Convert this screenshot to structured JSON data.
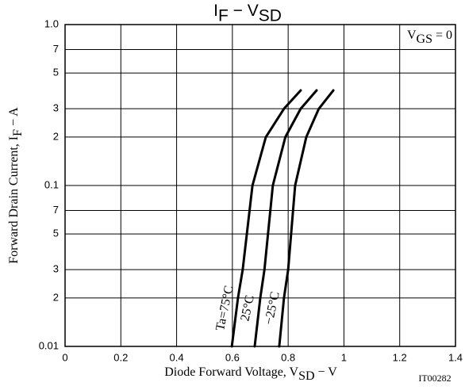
{
  "chart_data": {
    "type": "line",
    "title": [
      {
        "text": "I"
      },
      {
        "text": "F",
        "sub": true
      },
      {
        "text": " − V"
      },
      {
        "text": "SD",
        "sub": true
      }
    ],
    "x_label": [
      {
        "text": "Diode Forward Voltage, V"
      },
      {
        "text": "SD",
        "sub": true
      },
      {
        "text": " − V"
      }
    ],
    "y_label": [
      {
        "text": "Forward Drain Current, I"
      },
      {
        "text": "F",
        "sub": true
      },
      {
        "text": " − A"
      }
    ],
    "annotation": [
      {
        "text": "V"
      },
      {
        "text": "GS",
        "sub": true
      },
      {
        "text": " = 0"
      }
    ],
    "code": "IT00282",
    "xlim": [
      0,
      1.4
    ],
    "xticks": [
      0,
      0.2,
      0.4,
      0.6,
      0.8,
      1.0,
      1.2,
      1.4
    ],
    "ylim": [
      0.01,
      1.0
    ],
    "log_y": true,
    "yticks": [
      0.01,
      {
        "value": 0.02,
        "label": "2"
      },
      {
        "value": 0.03,
        "label": "3"
      },
      {
        "value": 0.05,
        "label": "5"
      },
      {
        "value": 0.07,
        "label": "7"
      },
      0.1,
      {
        "value": 0.2,
        "label": "2"
      },
      {
        "value": 0.3,
        "label": "3"
      },
      {
        "value": 0.5,
        "label": "5"
      },
      {
        "value": 0.7,
        "label": "7"
      },
      {
        "value": 1.0,
        "label": "1.0"
      }
    ],
    "grid": true,
    "color": "#000000",
    "series": [
      {
        "name": "Ta=75°C",
        "x": [
          0.598,
          0.62,
          0.637,
          0.672,
          0.72,
          0.785,
          0.845
        ],
        "values": [
          0.01,
          0.02,
          0.03,
          0.1,
          0.2,
          0.3,
          0.39
        ]
      },
      {
        "name": "25°C",
        "x": [
          0.68,
          0.7,
          0.715,
          0.745,
          0.79,
          0.845,
          0.902
        ],
        "values": [
          0.01,
          0.02,
          0.03,
          0.1,
          0.2,
          0.3,
          0.39
        ]
      },
      {
        "name": "−25°C",
        "x": [
          0.768,
          0.785,
          0.8,
          0.825,
          0.865,
          0.91,
          0.962
        ],
        "values": [
          0.01,
          0.02,
          0.03,
          0.1,
          0.2,
          0.3,
          0.39
        ]
      }
    ]
  }
}
